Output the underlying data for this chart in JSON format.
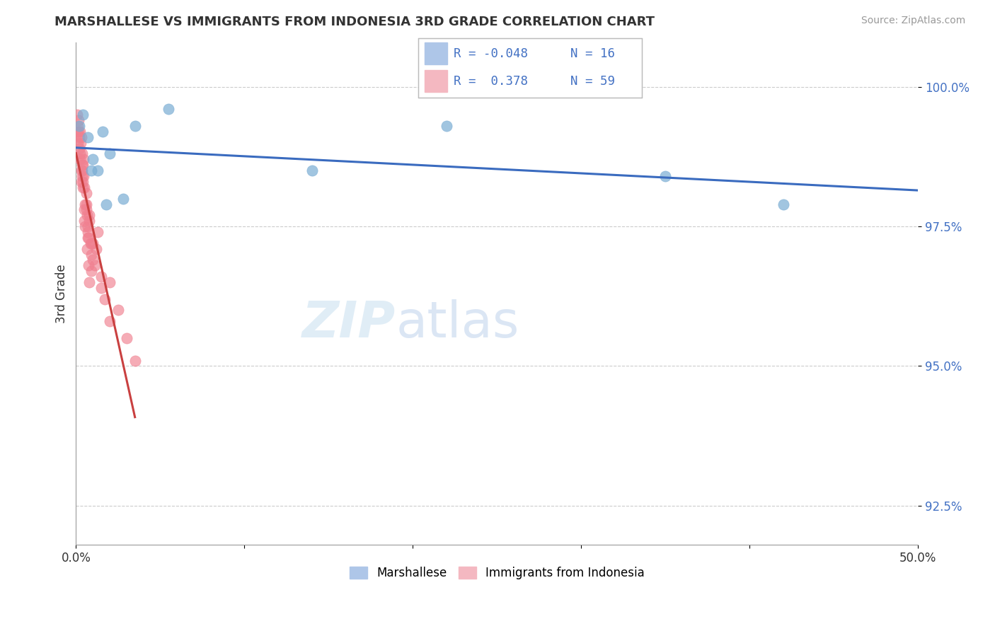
{
  "title": "MARSHALLESE VS IMMIGRANTS FROM INDONESIA 3RD GRADE CORRELATION CHART",
  "source": "Source: ZipAtlas.com",
  "ylabel": "3rd Grade",
  "xlim": [
    0.0,
    50.0
  ],
  "ylim": [
    91.8,
    100.8
  ],
  "yticks": [
    92.5,
    95.0,
    97.5,
    100.0
  ],
  "ytick_labels": [
    "92.5%",
    "95.0%",
    "97.5%",
    "100.0%"
  ],
  "blue_R": -0.048,
  "blue_N": 16,
  "pink_R": 0.378,
  "pink_N": 59,
  "blue_scatter_x": [
    0.2,
    0.4,
    0.7,
    1.0,
    1.3,
    1.6,
    2.0,
    2.8,
    3.5,
    5.5,
    14.0,
    22.0,
    35.0,
    42.0,
    0.9,
    1.8
  ],
  "blue_scatter_y": [
    99.3,
    99.5,
    99.1,
    98.7,
    98.5,
    99.2,
    98.8,
    98.0,
    99.3,
    99.6,
    98.5,
    99.3,
    98.4,
    97.9,
    98.5,
    97.9
  ],
  "pink_scatter_x": [
    0.05,
    0.08,
    0.1,
    0.12,
    0.15,
    0.18,
    0.2,
    0.22,
    0.25,
    0.28,
    0.3,
    0.32,
    0.35,
    0.38,
    0.4,
    0.42,
    0.45,
    0.5,
    0.55,
    0.6,
    0.65,
    0.7,
    0.75,
    0.8,
    0.85,
    0.9,
    1.0,
    1.1,
    1.2,
    1.3,
    1.5,
    1.7,
    2.0,
    2.5,
    3.0,
    3.5,
    0.4,
    0.5,
    0.3,
    0.6,
    0.7,
    0.8,
    0.9,
    1.0,
    0.35,
    0.45,
    0.55,
    0.65,
    0.75,
    1.5,
    2.0,
    0.25,
    0.15,
    0.35,
    0.5,
    0.6,
    0.7,
    0.8,
    0.9
  ],
  "pink_scatter_y": [
    99.2,
    99.5,
    99.3,
    99.0,
    99.4,
    99.1,
    98.9,
    99.2,
    98.7,
    99.0,
    98.5,
    99.1,
    98.8,
    98.4,
    98.6,
    98.3,
    98.7,
    98.2,
    97.9,
    98.1,
    97.7,
    97.5,
    97.3,
    97.6,
    97.2,
    97.0,
    97.2,
    96.8,
    97.1,
    97.4,
    96.6,
    96.2,
    96.5,
    96.0,
    95.5,
    95.1,
    98.2,
    97.6,
    98.3,
    97.8,
    97.4,
    97.7,
    97.2,
    96.9,
    98.5,
    98.4,
    97.5,
    97.1,
    96.8,
    96.4,
    95.8,
    98.8,
    99.2,
    98.6,
    97.8,
    97.9,
    97.3,
    96.5,
    96.7
  ],
  "blue_line_color": "#3a6bbf",
  "pink_line_color": "#c94040",
  "scatter_blue_color": "#7aadd4",
  "scatter_pink_color": "#f08090",
  "watermark_zip": "ZIP",
  "watermark_atlas": "atlas",
  "background_color": "#ffffff",
  "legend_blue_label_r": "R = -0.048",
  "legend_blue_label_n": "N = 16",
  "legend_pink_label_r": "R =  0.378",
  "legend_pink_label_n": "N = 59",
  "legend_blue_color": "#aec6e8",
  "legend_pink_color": "#f4b8c1",
  "bottom_legend_blue": "Marshallese",
  "bottom_legend_pink": "Immigrants from Indonesia"
}
